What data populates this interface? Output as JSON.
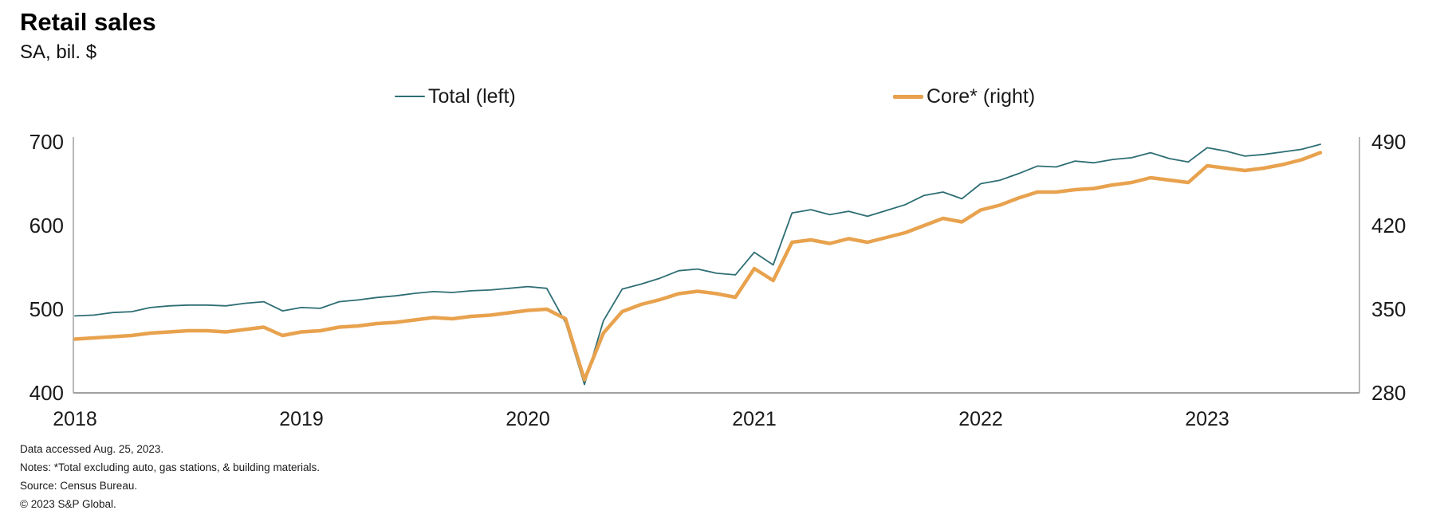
{
  "header": {
    "title": "Retail sales",
    "subtitle": "SA, bil. $"
  },
  "legend": {
    "items": [
      {
        "label": "Total (left)",
        "color": "#2e6e74",
        "thickness": 2
      },
      {
        "label": "Core* (right)",
        "color": "#e8a24e",
        "thickness": 5
      }
    ]
  },
  "footer": {
    "lines": [
      "Data accessed Aug. 25, 2023.",
      "Notes: *Total excluding auto, gas stations, & building materials.",
      "Source: Census Bureau.",
      "© 2023 S&P Global."
    ]
  },
  "chart_data": {
    "type": "line",
    "title": "Retail sales",
    "subtitle": "SA, bil. $",
    "grid": false,
    "legend_position": "top",
    "x_unit": "month",
    "x": [
      "2018-01",
      "2018-02",
      "2018-03",
      "2018-04",
      "2018-05",
      "2018-06",
      "2018-07",
      "2018-08",
      "2018-09",
      "2018-10",
      "2018-11",
      "2018-12",
      "2019-01",
      "2019-02",
      "2019-03",
      "2019-04",
      "2019-05",
      "2019-06",
      "2019-07",
      "2019-08",
      "2019-09",
      "2019-10",
      "2019-11",
      "2019-12",
      "2020-01",
      "2020-02",
      "2020-03",
      "2020-04",
      "2020-05",
      "2020-06",
      "2020-07",
      "2020-08",
      "2020-09",
      "2020-10",
      "2020-11",
      "2020-12",
      "2021-01",
      "2021-02",
      "2021-03",
      "2021-04",
      "2021-05",
      "2021-06",
      "2021-07",
      "2021-08",
      "2021-09",
      "2021-10",
      "2021-11",
      "2021-12",
      "2022-01",
      "2022-02",
      "2022-03",
      "2022-04",
      "2022-05",
      "2022-06",
      "2022-07",
      "2022-08",
      "2022-09",
      "2022-10",
      "2022-11",
      "2022-12",
      "2023-01",
      "2023-02",
      "2023-03",
      "2023-04",
      "2023-05",
      "2023-06",
      "2023-07"
    ],
    "x_tick_labels": [
      "2018",
      "2019",
      "2020",
      "2021",
      "2022",
      "2023"
    ],
    "left_axis": {
      "label": "Total (left)",
      "ticks": [
        400,
        500,
        600,
        700
      ],
      "range": [
        400,
        700
      ]
    },
    "right_axis": {
      "label": "Core* (right)",
      "ticks": [
        280,
        350,
        420,
        490
      ],
      "range": [
        280,
        490
      ]
    },
    "series": [
      {
        "name": "Total (left)",
        "axis": "left",
        "color": "#2e6e74",
        "width": 1.8,
        "values": [
          492,
          493,
          496,
          497,
          502,
          504,
          505,
          505,
          504,
          507,
          509,
          498,
          502,
          501,
          509,
          511,
          514,
          516,
          519,
          521,
          520,
          522,
          523,
          525,
          527,
          525,
          484,
          410,
          486,
          524,
          530,
          537,
          546,
          548,
          543,
          541,
          568,
          553,
          615,
          619,
          613,
          617,
          611,
          618,
          625,
          636,
          640,
          632,
          650,
          654,
          662,
          671,
          670,
          677,
          675,
          679,
          681,
          687,
          680,
          676,
          693,
          689,
          683,
          685,
          688,
          691,
          697
        ]
      },
      {
        "name": "Core* (right)",
        "axis": "right",
        "color": "#e8a24e",
        "width": 4.5,
        "values": [
          325,
          326,
          327,
          328,
          330,
          331,
          332,
          332,
          331,
          333,
          335,
          328,
          331,
          332,
          335,
          336,
          338,
          339,
          341,
          343,
          342,
          344,
          345,
          347,
          349,
          350,
          342,
          291,
          330,
          348,
          354,
          358,
          363,
          365,
          363,
          360,
          384,
          374,
          406,
          408,
          405,
          409,
          406,
          410,
          414,
          420,
          426,
          423,
          433,
          437,
          443,
          448,
          448,
          450,
          451,
          454,
          456,
          460,
          458,
          456,
          470,
          468,
          466,
          468,
          471,
          475,
          481
        ]
      }
    ]
  }
}
